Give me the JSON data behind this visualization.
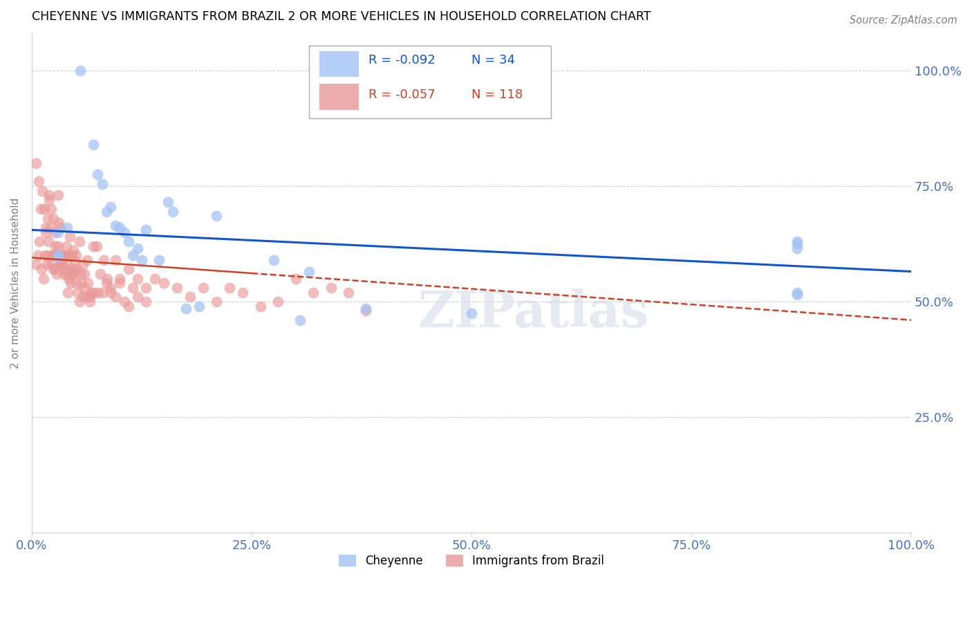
{
  "title": "CHEYENNE VS IMMIGRANTS FROM BRAZIL 2 OR MORE VEHICLES IN HOUSEHOLD CORRELATION CHART",
  "source": "Source: ZipAtlas.com",
  "ylabel": "2 or more Vehicles in Household",
  "blue_color": "#a4c2f4",
  "pink_color": "#ea9999",
  "blue_line_color": "#1155cc",
  "pink_line_color": "#cc4125",
  "legend_blue_R": "R = -0.092",
  "legend_blue_N": "N = 34",
  "legend_pink_R": "R = -0.057",
  "legend_pink_N": "N = 118",
  "watermark": "ZIPatlas",
  "cheyenne_x": [
    0.04,
    0.055,
    0.07,
    0.075,
    0.08,
    0.085,
    0.09,
    0.095,
    0.1,
    0.105,
    0.11,
    0.115,
    0.12,
    0.125,
    0.13,
    0.145,
    0.155,
    0.16,
    0.175,
    0.19,
    0.21,
    0.275,
    0.305,
    0.38,
    0.87,
    0.87,
    0.87,
    0.87,
    0.87,
    0.5,
    0.315,
    0.03,
    0.03,
    0.03
  ],
  "cheyenne_y": [
    0.66,
    1.0,
    0.84,
    0.775,
    0.755,
    0.695,
    0.705,
    0.665,
    0.66,
    0.65,
    0.63,
    0.6,
    0.615,
    0.59,
    0.655,
    0.59,
    0.715,
    0.695,
    0.485,
    0.49,
    0.685,
    0.59,
    0.46,
    0.485,
    0.63,
    0.615,
    0.625,
    0.515,
    0.52,
    0.475,
    0.565,
    0.65,
    0.6,
    0.595
  ],
  "brazil_x": [
    0.005,
    0.007,
    0.009,
    0.011,
    0.013,
    0.015,
    0.016,
    0.017,
    0.018,
    0.019,
    0.02,
    0.021,
    0.022,
    0.023,
    0.024,
    0.025,
    0.026,
    0.027,
    0.028,
    0.029,
    0.03,
    0.031,
    0.032,
    0.033,
    0.034,
    0.035,
    0.036,
    0.037,
    0.038,
    0.039,
    0.04,
    0.041,
    0.042,
    0.043,
    0.044,
    0.045,
    0.046,
    0.047,
    0.048,
    0.049,
    0.05,
    0.052,
    0.054,
    0.056,
    0.058,
    0.06,
    0.063,
    0.066,
    0.07,
    0.074,
    0.078,
    0.082,
    0.086,
    0.09,
    0.095,
    0.1,
    0.105,
    0.11,
    0.115,
    0.12,
    0.13,
    0.14,
    0.15,
    0.165,
    0.18,
    0.195,
    0.21,
    0.225,
    0.24,
    0.26,
    0.28,
    0.3,
    0.32,
    0.34,
    0.36,
    0.38,
    0.005,
    0.008,
    0.01,
    0.012,
    0.014,
    0.016,
    0.018,
    0.02,
    0.022,
    0.024,
    0.026,
    0.028,
    0.03,
    0.032,
    0.034,
    0.036,
    0.038,
    0.04,
    0.042,
    0.044,
    0.046,
    0.048,
    0.05,
    0.052,
    0.054,
    0.056,
    0.058,
    0.06,
    0.062,
    0.064,
    0.066,
    0.068,
    0.07,
    0.075,
    0.08,
    0.085,
    0.09,
    0.095,
    0.1,
    0.11,
    0.12,
    0.13
  ],
  "brazil_y": [
    0.58,
    0.6,
    0.63,
    0.57,
    0.55,
    0.6,
    0.65,
    0.58,
    0.6,
    0.63,
    0.73,
    0.66,
    0.58,
    0.6,
    0.57,
    0.6,
    0.57,
    0.62,
    0.56,
    0.6,
    0.73,
    0.67,
    0.66,
    0.58,
    0.6,
    0.58,
    0.6,
    0.57,
    0.6,
    0.62,
    0.56,
    0.52,
    0.6,
    0.64,
    0.57,
    0.6,
    0.56,
    0.61,
    0.57,
    0.59,
    0.6,
    0.57,
    0.63,
    0.56,
    0.58,
    0.53,
    0.59,
    0.51,
    0.62,
    0.62,
    0.56,
    0.59,
    0.55,
    0.53,
    0.59,
    0.55,
    0.5,
    0.57,
    0.53,
    0.55,
    0.53,
    0.55,
    0.54,
    0.53,
    0.51,
    0.53,
    0.5,
    0.53,
    0.52,
    0.49,
    0.5,
    0.55,
    0.52,
    0.53,
    0.52,
    0.48,
    0.8,
    0.76,
    0.7,
    0.74,
    0.7,
    0.66,
    0.68,
    0.72,
    0.7,
    0.68,
    0.65,
    0.6,
    0.62,
    0.58,
    0.58,
    0.56,
    0.6,
    0.58,
    0.55,
    0.54,
    0.56,
    0.56,
    0.54,
    0.52,
    0.5,
    0.54,
    0.51,
    0.56,
    0.51,
    0.54,
    0.5,
    0.52,
    0.52,
    0.52,
    0.52,
    0.54,
    0.52,
    0.51,
    0.54,
    0.49,
    0.51,
    0.5
  ],
  "blue_trendline_x": [
    0.0,
    1.0
  ],
  "blue_trendline_y": [
    0.655,
    0.565
  ],
  "pink_trendline_x": [
    0.0,
    1.0
  ],
  "pink_trendline_y": [
    0.595,
    0.46
  ],
  "xlim": [
    0.0,
    1.0
  ],
  "ylim": [
    0.0,
    1.08
  ],
  "right_ytick_labels": [
    "25.0%",
    "50.0%",
    "75.0%",
    "100.0%"
  ],
  "right_ytick_vals": [
    0.25,
    0.5,
    0.75,
    1.0
  ],
  "xtick_vals": [
    0.0,
    0.25,
    0.5,
    0.75,
    1.0
  ],
  "xtick_labels": [
    "0.0%",
    "25.0%",
    "50.0%",
    "75.0%",
    "100.0%"
  ]
}
